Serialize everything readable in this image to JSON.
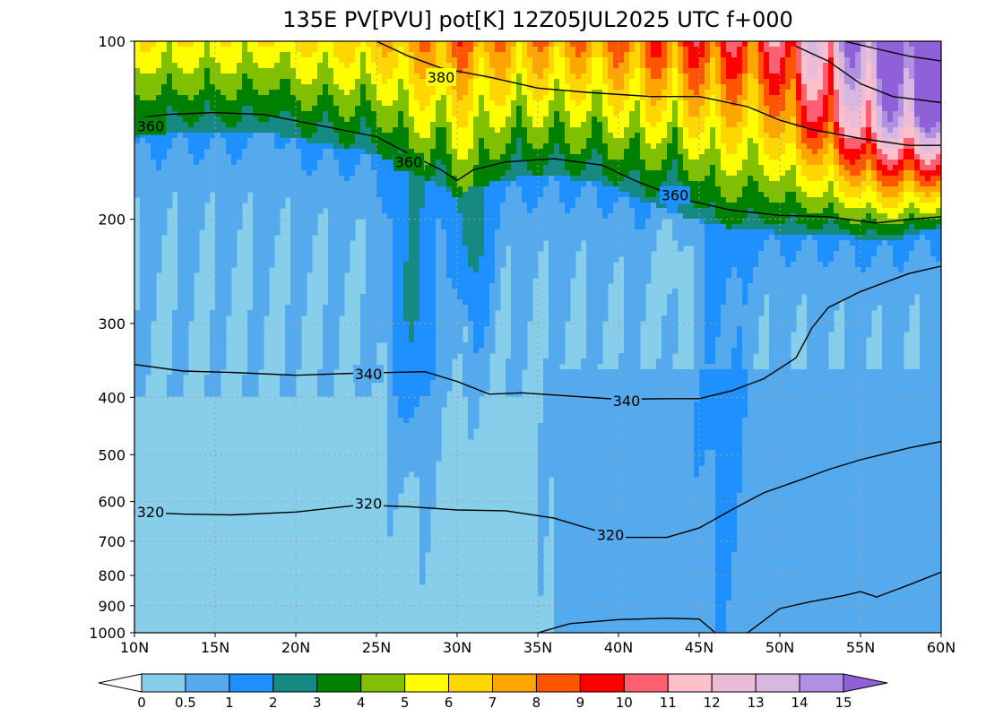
{
  "chart_data": {
    "type": "heatmap",
    "title": "135E PV[PVU] pot[K] 12Z05JUL2025 UTC f+000",
    "x_ticks": [
      "10N",
      "15N",
      "20N",
      "25N",
      "30N",
      "35N",
      "40N",
      "45N",
      "50N",
      "55N",
      "60N"
    ],
    "x_values": [
      10,
      15,
      20,
      25,
      30,
      35,
      40,
      45,
      50,
      55,
      60
    ],
    "y_ticks": [
      "100",
      "200",
      "300",
      "400",
      "500",
      "600",
      "700",
      "800",
      "900",
      "1000"
    ],
    "y_values": [
      100,
      200,
      300,
      400,
      500,
      600,
      700,
      800,
      900,
      1000
    ],
    "y_scale": "log",
    "xlim": [
      10,
      60
    ],
    "ylim": [
      1000,
      100
    ],
    "grid": true,
    "pv_levels": [
      0,
      0.5,
      1,
      2,
      3,
      4,
      5,
      6,
      7,
      8,
      9,
      10,
      11,
      12,
      13,
      14,
      15
    ],
    "pv_level_labels": [
      "0",
      "0.5",
      "1",
      "2",
      "3",
      "4",
      "5",
      "6",
      "7",
      "8",
      "9",
      "10",
      "11",
      "12",
      "13",
      "14",
      "15"
    ],
    "pv_colors": [
      "#ffffff",
      "#87ceeb",
      "#55aaee",
      "#1e90ff",
      "#168a82",
      "#008000",
      "#80c000",
      "#ffff00",
      "#ffd700",
      "#ffa500",
      "#ff5500",
      "#ff0000",
      "#ff6070",
      "#ffc0cb",
      "#ebbcd8",
      "#d8b8e0",
      "#b090e0",
      "#9060d8"
    ],
    "colorbar": {
      "position": "bottom",
      "extend": "both"
    },
    "theta_contours": [
      {
        "name": "320",
        "labels": [
          {
            "lat": 11.0,
            "p": 624,
            "text": "320"
          },
          {
            "lat": 24.5,
            "p": 604,
            "text": "320"
          },
          {
            "lat": 39.5,
            "p": 683,
            "text": "320"
          }
        ],
        "points": [
          [
            10,
            625
          ],
          [
            13,
            630
          ],
          [
            16,
            632
          ],
          [
            20,
            625
          ],
          [
            24,
            608
          ],
          [
            27,
            612
          ],
          [
            30,
            620
          ],
          [
            33,
            622
          ],
          [
            36,
            640
          ],
          [
            40,
            690
          ],
          [
            43,
            690
          ],
          [
            45,
            665
          ],
          [
            47,
            620
          ],
          [
            49,
            580
          ],
          [
            51,
            555
          ],
          [
            53,
            530
          ],
          [
            55,
            510
          ],
          [
            58,
            487
          ],
          [
            60,
            475
          ]
        ]
      },
      {
        "name": "340",
        "labels": [
          {
            "lat": 24.5,
            "p": 365,
            "text": "340"
          },
          {
            "lat": 40.5,
            "p": 405,
            "text": "340"
          }
        ],
        "points": [
          [
            10,
            352
          ],
          [
            13,
            361
          ],
          [
            16,
            363
          ],
          [
            20,
            367
          ],
          [
            24,
            364
          ],
          [
            28,
            362
          ],
          [
            30,
            376
          ],
          [
            32,
            395
          ],
          [
            34,
            393
          ],
          [
            37,
            398
          ],
          [
            40,
            403
          ],
          [
            43,
            402
          ],
          [
            45,
            402
          ],
          [
            47,
            390
          ],
          [
            49,
            372
          ],
          [
            51,
            343
          ],
          [
            52,
            305
          ],
          [
            53,
            282
          ],
          [
            55,
            265
          ],
          [
            58,
            247
          ],
          [
            60,
            240
          ]
        ]
      },
      {
        "name": "360",
        "labels": [
          {
            "lat": 11.0,
            "p": 139,
            "text": "360"
          },
          {
            "lat": 27.0,
            "p": 160,
            "text": "360"
          },
          {
            "lat": 43.5,
            "p": 182,
            "text": "360"
          }
        ],
        "points": [
          [
            10,
            135
          ],
          [
            12,
            133
          ],
          [
            15,
            132
          ],
          [
            18,
            133
          ],
          [
            21,
            138
          ],
          [
            25,
            145
          ],
          [
            27,
            155
          ],
          [
            29,
            165
          ],
          [
            30,
            172
          ],
          [
            31,
            165
          ],
          [
            33,
            160
          ],
          [
            36,
            158
          ],
          [
            39,
            162
          ],
          [
            41,
            172
          ],
          [
            44,
            185
          ],
          [
            47,
            193
          ],
          [
            50,
            197
          ],
          [
            53,
            198
          ],
          [
            56,
            203
          ],
          [
            58,
            200
          ],
          [
            60,
            198
          ]
        ]
      },
      {
        "name": "380",
        "labels": [
          {
            "lat": 29.0,
            "p": 115,
            "text": "380"
          }
        ],
        "points": [
          [
            25,
            100
          ],
          [
            27,
            106
          ],
          [
            29,
            111
          ],
          [
            32,
            115
          ],
          [
            35,
            120
          ],
          [
            38,
            122
          ],
          [
            42,
            124
          ],
          [
            45,
            124
          ],
          [
            48,
            129
          ],
          [
            50,
            136
          ],
          [
            52,
            141
          ],
          [
            55,
            146
          ],
          [
            58,
            150
          ],
          [
            60,
            150
          ]
        ]
      },
      {
        "name": "",
        "labels": [],
        "points": [
          [
            54,
            100
          ],
          [
            56,
            103
          ],
          [
            58,
            106
          ],
          [
            60,
            108
          ]
        ]
      },
      {
        "name": "",
        "labels": [],
        "points": [
          [
            51,
            102
          ],
          [
            53,
            108
          ],
          [
            55,
            118
          ],
          [
            57,
            124
          ],
          [
            60,
            127
          ]
        ]
      },
      {
        "name": "",
        "labels": [],
        "points": [
          [
            35,
            1000
          ],
          [
            37,
            965
          ],
          [
            40,
            950
          ],
          [
            43,
            945
          ],
          [
            45,
            948
          ],
          [
            46,
            1000
          ]
        ]
      },
      {
        "name": "",
        "labels": [],
        "points": [
          [
            48,
            1000
          ],
          [
            50,
            910
          ],
          [
            52,
            885
          ],
          [
            54,
            865
          ],
          [
            55,
            852
          ],
          [
            56,
            870
          ],
          [
            58,
            830
          ],
          [
            60,
            790
          ]
        ]
      }
    ]
  }
}
